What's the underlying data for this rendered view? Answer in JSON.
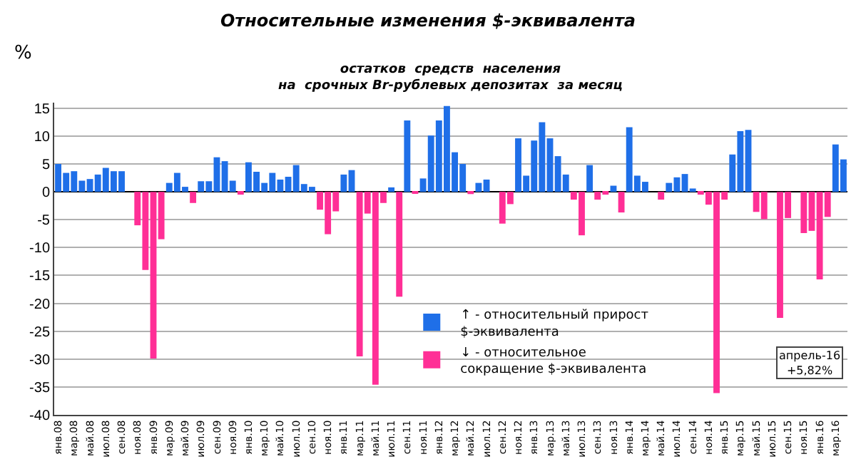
{
  "chart_data": {
    "type": "bar",
    "title": "Относительные изменения $-эквивалента",
    "subtitle": "остатков  средств  населения\nна  срочных Br-рублевых депозитах  за месяц",
    "ylabel": "%",
    "categories": [
      "янв.08",
      null,
      "мар.08",
      null,
      "май.08",
      null,
      "июл.08",
      null,
      "сен.08",
      null,
      "ноя.08",
      null,
      "янв.09",
      null,
      "мар.09",
      null,
      "май.09",
      null,
      "июл.09",
      null,
      "сен.09",
      null,
      "ноя.09",
      null,
      "янв.10",
      null,
      "мар.10",
      null,
      "май.10",
      null,
      "июл.10",
      null,
      "сен.10",
      null,
      "ноя.10",
      null,
      "янв.11",
      null,
      "мар.11",
      null,
      "май.11",
      null,
      "июл.11",
      null,
      "сен.11",
      null,
      "ноя.11",
      null,
      "янв.12",
      null,
      "мар.12",
      null,
      "май.12",
      null,
      "июл.12",
      null,
      "сен.12",
      null,
      "ноя.12",
      null,
      "янв.13",
      null,
      "мар.13",
      null,
      "май.13",
      null,
      "июл.13",
      null,
      "сен.13",
      null,
      "ноя.13",
      null,
      "янв.14",
      null,
      "мар.14",
      null,
      "май.14",
      null,
      "июл.14",
      null,
      "сен.14",
      null,
      "ноя.14",
      null,
      "янв.15",
      null,
      "мар.15",
      null,
      "май.15",
      null,
      "июл.15",
      null,
      "сен.15",
      null,
      "ноя.15",
      null,
      "янв.16",
      null,
      "мар.16",
      null
    ],
    "series": [
      {
        "name": "↑ - относительный прирост $-эквивалента",
        "color": "#1f6fe8",
        "values": [
          5.0,
          3.4,
          3.7,
          2.0,
          2.3,
          3.1,
          4.3,
          3.7,
          3.7,
          null,
          null,
          null,
          null,
          null,
          1.6,
          3.4,
          0.9,
          null,
          1.9,
          1.9,
          6.2,
          5.5,
          2.0,
          null,
          5.3,
          3.6,
          1.6,
          3.4,
          2.2,
          2.7,
          4.8,
          1.4,
          0.9,
          null,
          null,
          null,
          3.1,
          3.9,
          null,
          null,
          null,
          null,
          0.8,
          null,
          12.8,
          null,
          2.4,
          10.1,
          12.8,
          15.4,
          7.1,
          5.0,
          null,
          1.6,
          2.2,
          null,
          null,
          null,
          9.6,
          2.9,
          9.2,
          12.5,
          9.6,
          6.4,
          3.1,
          null,
          null,
          4.8,
          null,
          null,
          1.1,
          null,
          11.6,
          2.9,
          1.8,
          null,
          null,
          1.6,
          2.6,
          3.2,
          0.6,
          null,
          null,
          null,
          null,
          6.7,
          10.9,
          11.1,
          null,
          null,
          null,
          null,
          null,
          null,
          null,
          null,
          null,
          null,
          8.5,
          5.82
        ]
      },
      {
        "name": "↓ - относительное сокращение $-эквивалента",
        "color": "#ff2f96",
        "values": [
          null,
          null,
          null,
          null,
          null,
          null,
          null,
          null,
          null,
          null,
          -6.0,
          -14.0,
          -29.9,
          -8.5,
          null,
          null,
          null,
          -2.0,
          null,
          null,
          null,
          null,
          null,
          -0.5,
          null,
          null,
          null,
          null,
          null,
          null,
          null,
          null,
          null,
          -3.2,
          -7.6,
          -3.5,
          null,
          null,
          -29.5,
          -3.9,
          -34.6,
          -2.0,
          null,
          -18.8,
          null,
          -0.3,
          null,
          null,
          null,
          null,
          null,
          null,
          -0.4,
          null,
          null,
          null,
          -5.7,
          -2.2,
          null,
          null,
          null,
          null,
          null,
          null,
          null,
          -1.4,
          -7.8,
          null,
          -1.4,
          -0.5,
          null,
          -3.7,
          null,
          null,
          null,
          null,
          -1.4,
          null,
          null,
          null,
          null,
          -0.5,
          -2.3,
          -36.1,
          -1.4,
          null,
          null,
          null,
          -3.6,
          -4.9,
          null,
          -22.6,
          -4.7,
          null,
          -7.4,
          -7.0,
          -15.7,
          -4.5,
          null,
          null
        ]
      }
    ],
    "stacked": true,
    "ylim": [
      -40,
      16
    ],
    "yticks": [
      -40,
      -35,
      -30,
      -25,
      -20,
      -15,
      -10,
      -5,
      0,
      5,
      10,
      15
    ],
    "grid": "y",
    "legend": "bottom right",
    "annotations": [
      "апрель-16\n+5,82%"
    ]
  }
}
